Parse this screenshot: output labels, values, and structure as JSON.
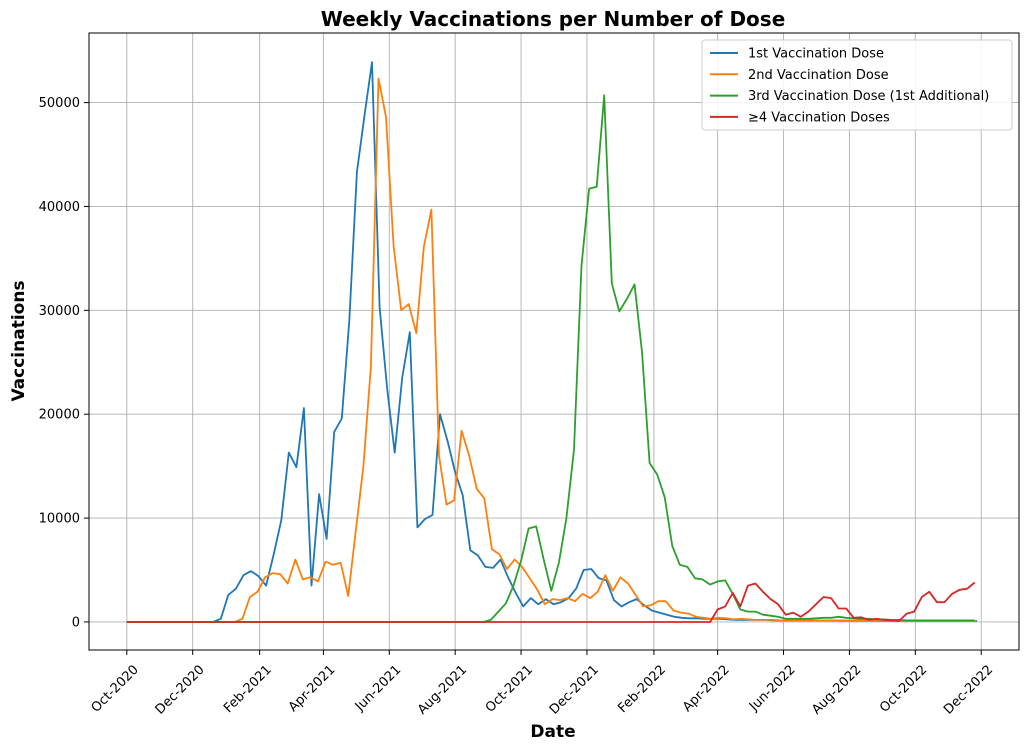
{
  "chart_data": {
    "type": "line",
    "title": "Weekly Vaccinations per Number of Dose",
    "xlabel": "Date",
    "ylabel": "Vaccinations",
    "x_ticks": [
      {
        "label": "Oct-2020",
        "value": 0
      },
      {
        "label": "Dec-2020",
        "value": 61
      },
      {
        "label": "Feb-2021",
        "value": 123
      },
      {
        "label": "Apr-2021",
        "value": 182
      },
      {
        "label": "Jun-2021",
        "value": 243
      },
      {
        "label": "Aug-2021",
        "value": 304
      },
      {
        "label": "Oct-2021",
        "value": 365
      },
      {
        "label": "Dec-2021",
        "value": 426
      },
      {
        "label": "Feb-2022",
        "value": 488
      },
      {
        "label": "Apr-2022",
        "value": 547
      },
      {
        "label": "Jun-2022",
        "value": 608
      },
      {
        "label": "Aug-2022",
        "value": 669
      },
      {
        "label": "Oct-2022",
        "value": 730
      },
      {
        "label": "Dec-2022",
        "value": 791
      }
    ],
    "x_unit": "days since 2020-10-01",
    "xlim": [
      -35,
      826
    ],
    "ylim": [
      -2700,
      56700
    ],
    "y_ticks": [
      0,
      10000,
      20000,
      30000,
      40000,
      50000
    ],
    "grid": true,
    "legend_position": "top-right",
    "series": [
      {
        "name": "1st Vaccination Dose",
        "color": "#1f77b4",
        "points": [
          [
            0,
            0
          ],
          [
            80,
            0
          ],
          [
            87,
            300
          ],
          [
            94,
            2600
          ],
          [
            101,
            3200
          ],
          [
            108,
            4500
          ],
          [
            115,
            4900
          ],
          [
            122,
            4400
          ],
          [
            129,
            3500
          ],
          [
            136,
            6500
          ],
          [
            143,
            9800
          ],
          [
            150,
            16300
          ],
          [
            157,
            14900
          ],
          [
            164,
            20600
          ],
          [
            171,
            3500
          ],
          [
            178,
            12300
          ],
          [
            185,
            8000
          ],
          [
            192,
            18300
          ],
          [
            199,
            19600
          ],
          [
            206,
            29000
          ],
          [
            213,
            43300
          ],
          [
            220,
            48700
          ],
          [
            227,
            53900
          ],
          [
            234,
            30300
          ],
          [
            241,
            22500
          ],
          [
            248,
            16300
          ],
          [
            255,
            23500
          ],
          [
            262,
            27900
          ],
          [
            269,
            9100
          ],
          [
            276,
            9900
          ],
          [
            283,
            10300
          ],
          [
            290,
            20000
          ],
          [
            297,
            17400
          ],
          [
            304,
            14400
          ],
          [
            311,
            12200
          ],
          [
            318,
            6900
          ],
          [
            325,
            6400
          ],
          [
            332,
            5300
          ],
          [
            339,
            5200
          ],
          [
            346,
            6000
          ],
          [
            353,
            4300
          ],
          [
            360,
            2800
          ],
          [
            367,
            1500
          ],
          [
            374,
            2300
          ],
          [
            381,
            1700
          ],
          [
            388,
            2200
          ],
          [
            395,
            1700
          ],
          [
            402,
            1900
          ],
          [
            409,
            2300
          ],
          [
            416,
            3200
          ],
          [
            423,
            5000
          ],
          [
            430,
            5100
          ],
          [
            437,
            4200
          ],
          [
            444,
            4000
          ],
          [
            451,
            2100
          ],
          [
            458,
            1500
          ],
          [
            465,
            1900
          ],
          [
            472,
            2200
          ],
          [
            479,
            1600
          ],
          [
            486,
            1100
          ],
          [
            493,
            900
          ],
          [
            500,
            700
          ],
          [
            507,
            500
          ],
          [
            514,
            400
          ],
          [
            521,
            350
          ],
          [
            528,
            350
          ],
          [
            535,
            300
          ],
          [
            542,
            300
          ],
          [
            549,
            300
          ],
          [
            556,
            250
          ],
          [
            563,
            200
          ],
          [
            570,
            200
          ],
          [
            577,
            200
          ],
          [
            584,
            200
          ],
          [
            591,
            200
          ],
          [
            598,
            150
          ],
          [
            605,
            150
          ],
          [
            612,
            150
          ],
          [
            619,
            150
          ],
          [
            626,
            150
          ],
          [
            633,
            150
          ],
          [
            640,
            150
          ],
          [
            647,
            150
          ],
          [
            654,
            150
          ],
          [
            661,
            120
          ],
          [
            668,
            120
          ],
          [
            675,
            120
          ],
          [
            682,
            120
          ],
          [
            689,
            120
          ],
          [
            696,
            120
          ],
          [
            703,
            100
          ],
          [
            710,
            100
          ],
          [
            717,
            100
          ],
          [
            724,
            100
          ],
          [
            731,
            100
          ],
          [
            738,
            100
          ],
          [
            745,
            100
          ],
          [
            752,
            100
          ],
          [
            759,
            100
          ],
          [
            766,
            100
          ],
          [
            773,
            100
          ],
          [
            780,
            100
          ],
          [
            787,
            100
          ]
        ]
      },
      {
        "name": "2nd Vaccination Dose",
        "color": "#ff7f0e",
        "points": [
          [
            0,
            0
          ],
          [
            100,
            0
          ],
          [
            107,
            300
          ],
          [
            114,
            2400
          ],
          [
            121,
            2900
          ],
          [
            128,
            4300
          ],
          [
            135,
            4700
          ],
          [
            142,
            4600
          ],
          [
            149,
            3700
          ],
          [
            156,
            6000
          ],
          [
            163,
            4100
          ],
          [
            170,
            4300
          ],
          [
            177,
            3900
          ],
          [
            184,
            5800
          ],
          [
            191,
            5500
          ],
          [
            198,
            5700
          ],
          [
            205,
            2500
          ],
          [
            212,
            8800
          ],
          [
            219,
            15000
          ],
          [
            226,
            24600
          ],
          [
            233,
            52300
          ],
          [
            240,
            48600
          ],
          [
            247,
            36200
          ],
          [
            254,
            30000
          ],
          [
            261,
            30600
          ],
          [
            268,
            27800
          ],
          [
            275,
            36100
          ],
          [
            282,
            39700
          ],
          [
            289,
            16000
          ],
          [
            296,
            11300
          ],
          [
            303,
            11700
          ],
          [
            310,
            18400
          ],
          [
            317,
            16000
          ],
          [
            324,
            12800
          ],
          [
            331,
            11900
          ],
          [
            338,
            7000
          ],
          [
            345,
            6500
          ],
          [
            352,
            5100
          ],
          [
            359,
            6000
          ],
          [
            366,
            5300
          ],
          [
            373,
            4200
          ],
          [
            380,
            3100
          ],
          [
            387,
            1700
          ],
          [
            394,
            2200
          ],
          [
            401,
            2100
          ],
          [
            408,
            2300
          ],
          [
            415,
            2000
          ],
          [
            422,
            2700
          ],
          [
            429,
            2300
          ],
          [
            436,
            2900
          ],
          [
            443,
            4500
          ],
          [
            450,
            3000
          ],
          [
            457,
            4300
          ],
          [
            464,
            3700
          ],
          [
            471,
            2600
          ],
          [
            478,
            1500
          ],
          [
            485,
            1600
          ],
          [
            492,
            2000
          ],
          [
            499,
            2000
          ],
          [
            506,
            1100
          ],
          [
            513,
            900
          ],
          [
            520,
            800
          ],
          [
            527,
            500
          ],
          [
            534,
            400
          ],
          [
            541,
            300
          ],
          [
            548,
            400
          ],
          [
            555,
            350
          ],
          [
            562,
            250
          ],
          [
            569,
            300
          ],
          [
            576,
            250
          ],
          [
            583,
            200
          ],
          [
            590,
            200
          ],
          [
            597,
            200
          ],
          [
            604,
            150
          ],
          [
            611,
            150
          ],
          [
            618,
            150
          ],
          [
            625,
            150
          ],
          [
            632,
            150
          ],
          [
            639,
            150
          ],
          [
            646,
            150
          ],
          [
            653,
            150
          ],
          [
            660,
            120
          ],
          [
            667,
            120
          ],
          [
            674,
            120
          ],
          [
            681,
            120
          ],
          [
            688,
            120
          ],
          [
            695,
            120
          ],
          [
            702,
            100
          ],
          [
            709,
            100
          ],
          [
            716,
            100
          ],
          [
            723,
            100
          ],
          [
            730,
            100
          ],
          [
            737,
            100
          ],
          [
            744,
            100
          ],
          [
            751,
            100
          ],
          [
            758,
            100
          ],
          [
            765,
            100
          ],
          [
            772,
            100
          ],
          [
            779,
            100
          ],
          [
            786,
            100
          ]
        ]
      },
      {
        "name": "3rd Vaccination Dose (1st Additional)",
        "color": "#2ca02c",
        "points": [
          [
            0,
            0
          ],
          [
            330,
            0
          ],
          [
            337,
            200
          ],
          [
            344,
            1000
          ],
          [
            351,
            1800
          ],
          [
            358,
            3500
          ],
          [
            365,
            5900
          ],
          [
            372,
            9000
          ],
          [
            379,
            9200
          ],
          [
            386,
            6000
          ],
          [
            393,
            3000
          ],
          [
            400,
            5700
          ],
          [
            407,
            10000
          ],
          [
            414,
            16600
          ],
          [
            421,
            34300
          ],
          [
            428,
            41700
          ],
          [
            435,
            41900
          ],
          [
            442,
            50700
          ],
          [
            449,
            32600
          ],
          [
            456,
            29900
          ],
          [
            463,
            31100
          ],
          [
            470,
            32500
          ],
          [
            477,
            26000
          ],
          [
            484,
            15300
          ],
          [
            491,
            14200
          ],
          [
            498,
            12000
          ],
          [
            505,
            7300
          ],
          [
            512,
            5500
          ],
          [
            519,
            5300
          ],
          [
            526,
            4200
          ],
          [
            533,
            4100
          ],
          [
            540,
            3600
          ],
          [
            547,
            3900
          ],
          [
            554,
            4000
          ],
          [
            561,
            2700
          ],
          [
            568,
            1200
          ],
          [
            575,
            1000
          ],
          [
            582,
            1000
          ],
          [
            589,
            700
          ],
          [
            596,
            600
          ],
          [
            603,
            500
          ],
          [
            610,
            300
          ],
          [
            617,
            300
          ],
          [
            624,
            300
          ],
          [
            631,
            300
          ],
          [
            638,
            350
          ],
          [
            645,
            400
          ],
          [
            652,
            400
          ],
          [
            659,
            500
          ],
          [
            666,
            400
          ],
          [
            673,
            350
          ],
          [
            680,
            300
          ],
          [
            687,
            300
          ],
          [
            694,
            250
          ],
          [
            701,
            250
          ],
          [
            708,
            200
          ],
          [
            715,
            200
          ],
          [
            722,
            150
          ],
          [
            729,
            150
          ],
          [
            736,
            150
          ],
          [
            743,
            150
          ],
          [
            750,
            150
          ],
          [
            757,
            150
          ],
          [
            764,
            150
          ],
          [
            771,
            150
          ],
          [
            778,
            150
          ],
          [
            785,
            150
          ]
        ]
      },
      {
        "name": "≥4 Vaccination Doses",
        "color": "#d62728",
        "points": [
          [
            0,
            0
          ],
          [
            540,
            0
          ],
          [
            547,
            1200
          ],
          [
            554,
            1500
          ],
          [
            561,
            2800
          ],
          [
            568,
            1500
          ],
          [
            575,
            3500
          ],
          [
            582,
            3700
          ],
          [
            589,
            2900
          ],
          [
            596,
            2200
          ],
          [
            603,
            1700
          ],
          [
            610,
            700
          ],
          [
            617,
            900
          ],
          [
            624,
            500
          ],
          [
            631,
            1000
          ],
          [
            638,
            1700
          ],
          [
            645,
            2400
          ],
          [
            652,
            2300
          ],
          [
            659,
            1300
          ],
          [
            666,
            1300
          ],
          [
            673,
            400
          ],
          [
            680,
            450
          ],
          [
            687,
            200
          ],
          [
            694,
            300
          ],
          [
            701,
            200
          ],
          [
            708,
            150
          ],
          [
            715,
            100
          ],
          [
            722,
            800
          ],
          [
            729,
            1000
          ],
          [
            736,
            2400
          ],
          [
            743,
            2900
          ],
          [
            750,
            1900
          ],
          [
            757,
            1900
          ],
          [
            764,
            2700
          ],
          [
            771,
            3100
          ],
          [
            778,
            3200
          ],
          [
            785,
            3800
          ]
        ]
      }
    ]
  }
}
